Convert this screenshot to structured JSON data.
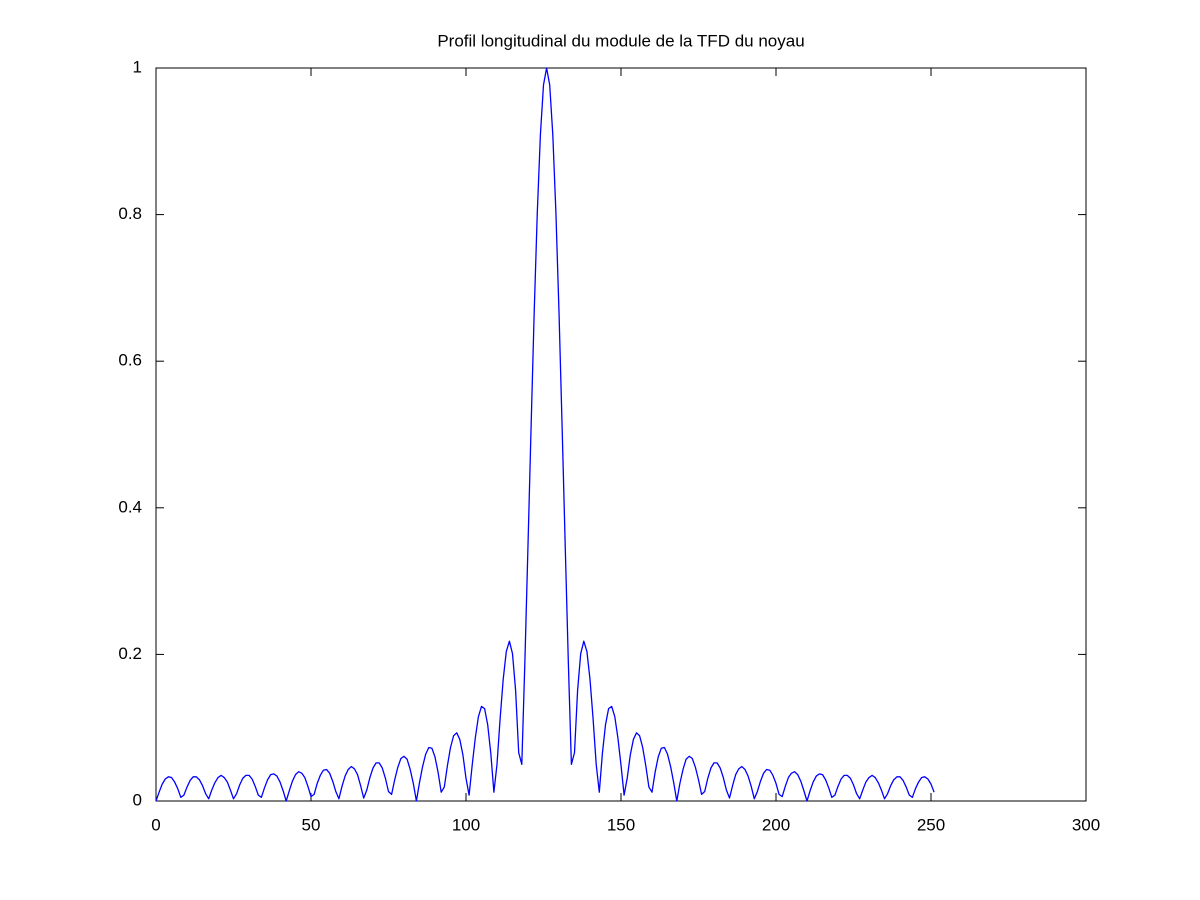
{
  "chart_data": {
    "type": "line",
    "title": "Profil longitudinal du module de la TFD du noyau",
    "x": [
      0,
      1,
      2,
      3,
      4,
      5,
      6,
      7,
      8,
      9,
      10,
      11,
      12,
      13,
      14,
      15,
      16,
      17,
      18,
      19,
      20,
      21,
      22,
      23,
      24,
      25,
      26,
      27,
      28,
      29,
      30,
      31,
      32,
      33,
      34,
      35,
      36,
      37,
      38,
      39,
      40,
      41,
      42,
      43,
      44,
      45,
      46,
      47,
      48,
      49,
      50,
      51,
      52,
      53,
      54,
      55,
      56,
      57,
      58,
      59,
      60,
      61,
      62,
      63,
      64,
      65,
      66,
      67,
      68,
      69,
      70,
      71,
      72,
      73,
      74,
      75,
      76,
      77,
      78,
      79,
      80,
      81,
      82,
      83,
      84,
      85,
      86,
      87,
      88,
      89,
      90,
      91,
      92,
      93,
      94,
      95,
      96,
      97,
      98,
      99,
      100,
      101,
      102,
      103,
      104,
      105,
      106,
      107,
      108,
      109,
      110,
      111,
      112,
      113,
      114,
      115,
      116,
      117,
      118,
      119,
      120,
      121,
      122,
      123,
      124,
      125,
      126,
      127,
      128,
      129,
      130,
      131,
      132,
      133,
      134,
      135,
      136,
      137,
      138,
      139,
      140,
      141,
      142,
      143,
      144,
      145,
      146,
      147,
      148,
      149,
      150,
      151,
      152,
      153,
      154,
      155,
      156,
      157,
      158,
      159,
      160,
      161,
      162,
      163,
      164,
      165,
      166,
      167,
      168,
      169,
      170,
      171,
      172,
      173,
      174,
      175,
      176,
      177,
      178,
      179,
      180,
      181,
      182,
      183,
      184,
      185,
      186,
      187,
      188,
      189,
      190,
      191,
      192,
      193,
      194,
      195,
      196,
      197,
      198,
      199,
      200,
      201,
      202,
      203,
      204,
      205,
      206,
      207,
      208,
      209,
      210,
      211,
      212,
      213,
      214,
      215,
      216,
      217,
      218,
      219,
      220,
      221,
      222,
      223,
      224,
      225,
      226,
      227,
      228,
      229,
      230,
      231,
      232,
      233,
      234,
      235,
      236,
      237,
      238,
      239,
      240,
      241,
      242,
      243,
      244,
      245,
      246,
      247,
      248,
      249,
      250,
      251
    ],
    "values": [
      0,
      0.012,
      0.023,
      0.03,
      0.033,
      0.032,
      0.026,
      0.017,
      0.005,
      0.008,
      0.019,
      0.028,
      0.033,
      0.033,
      0.029,
      0.021,
      0.01,
      0.003,
      0.015,
      0.025,
      0.032,
      0.035,
      0.032,
      0.026,
      0.015,
      0.003,
      0.01,
      0.022,
      0.031,
      0.035,
      0.035,
      0.03,
      0.02,
      0.008,
      0.005,
      0.018,
      0.029,
      0.036,
      0.037,
      0.034,
      0.026,
      0.014,
      0,
      0.014,
      0.027,
      0.036,
      0.04,
      0.038,
      0.032,
      0.02,
      0.006,
      0.009,
      0.024,
      0.035,
      0.042,
      0.043,
      0.038,
      0.027,
      0.013,
      0.003,
      0.02,
      0.034,
      0.043,
      0.047,
      0.044,
      0.036,
      0.021,
      0.004,
      0.015,
      0.032,
      0.045,
      0.052,
      0.052,
      0.045,
      0.031,
      0.013,
      0.009,
      0.029,
      0.046,
      0.058,
      0.061,
      0.057,
      0.043,
      0.024,
      0,
      0.025,
      0.047,
      0.064,
      0.073,
      0.072,
      0.06,
      0.039,
      0.012,
      0.019,
      0.048,
      0.073,
      0.089,
      0.093,
      0.084,
      0.063,
      0.031,
      0.008,
      0.049,
      0.086,
      0.115,
      0.129,
      0.126,
      0.104,
      0.065,
      0.012,
      0.05,
      0.112,
      0.166,
      0.204,
      0.218,
      0.201,
      0.151,
      0.066,
      0.05,
      0.191,
      0.349,
      0.511,
      0.667,
      0.803,
      0.909,
      0.977,
      1,
      0.977,
      0.909,
      0.803,
      0.667,
      0.511,
      0.349,
      0.191,
      0.05,
      0.066,
      0.151,
      0.201,
      0.218,
      0.204,
      0.166,
      0.112,
      0.05,
      0.012,
      0.065,
      0.104,
      0.126,
      0.129,
      0.115,
      0.086,
      0.049,
      0.008,
      0.031,
      0.063,
      0.084,
      0.093,
      0.089,
      0.073,
      0.048,
      0.019,
      0.012,
      0.039,
      0.06,
      0.072,
      0.073,
      0.064,
      0.047,
      0.025,
      0,
      0.024,
      0.043,
      0.057,
      0.061,
      0.058,
      0.046,
      0.029,
      0.009,
      0.013,
      0.031,
      0.045,
      0.052,
      0.052,
      0.045,
      0.032,
      0.015,
      0.004,
      0.021,
      0.036,
      0.044,
      0.047,
      0.043,
      0.034,
      0.02,
      0.003,
      0.013,
      0.027,
      0.038,
      0.043,
      0.042,
      0.035,
      0.024,
      0.009,
      0.006,
      0.02,
      0.032,
      0.038,
      0.04,
      0.036,
      0.027,
      0.014,
      0,
      0.014,
      0.026,
      0.034,
      0.037,
      0.036,
      0.029,
      0.018,
      0.005,
      0.008,
      0.02,
      0.03,
      0.035,
      0.035,
      0.031,
      0.022,
      0.01,
      0.003,
      0.015,
      0.026,
      0.032,
      0.035,
      0.032,
      0.025,
      0.015,
      0.003,
      0.01,
      0.021,
      0.029,
      0.033,
      0.033,
      0.028,
      0.019,
      0.008,
      0.005,
      0.017,
      0.026,
      0.032,
      0.033,
      0.03,
      0.023,
      0.012
    ],
    "color": "#0000ff",
    "xlim": [
      0,
      300
    ],
    "xticks": [
      0,
      50,
      100,
      150,
      200,
      250,
      300
    ],
    "ylim": [
      0,
      1
    ],
    "yticks": [
      0,
      0.2,
      0.4,
      0.6,
      0.8,
      1
    ],
    "grid": false
  }
}
